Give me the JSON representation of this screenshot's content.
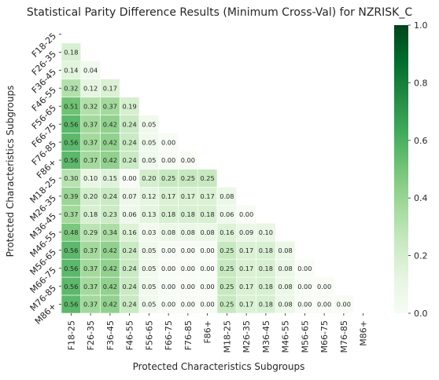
{
  "chart_data": {
    "type": "heatmap",
    "title": "Statistical Parity Difference Results (Minimum Cross-Val) for NZRISK_C",
    "xlabel": "Protected Characteristics Subgroups",
    "ylabel": "Protected Characteristics Subgroups",
    "categories": [
      "F18-25",
      "F26-35",
      "F36-45",
      "F46-55",
      "F56-65",
      "F66-75",
      "F76-85",
      "F86+",
      "M18-25",
      "M26-35",
      "M36-45",
      "M46-55",
      "M56-65",
      "M66-75",
      "M76-85",
      "M86+"
    ],
    "mask": "upper-triangle-including-diagonal",
    "values": [
      [],
      [
        0.18
      ],
      [
        0.14,
        0.04
      ],
      [
        0.32,
        0.12,
        0.17
      ],
      [
        0.51,
        0.32,
        0.37,
        0.19
      ],
      [
        0.56,
        0.37,
        0.42,
        0.24,
        0.05
      ],
      [
        0.56,
        0.37,
        0.42,
        0.24,
        0.05,
        0.0
      ],
      [
        0.56,
        0.37,
        0.42,
        0.24,
        0.05,
        0.0,
        0.0
      ],
      [
        0.3,
        0.1,
        0.15,
        0.0,
        0.2,
        0.25,
        0.25,
        0.25
      ],
      [
        0.39,
        0.2,
        0.24,
        0.07,
        0.12,
        0.17,
        0.17,
        0.17,
        0.08
      ],
      [
        0.37,
        0.18,
        0.23,
        0.06,
        0.13,
        0.18,
        0.18,
        0.18,
        0.06,
        0.0
      ],
      [
        0.48,
        0.29,
        0.34,
        0.16,
        0.03,
        0.08,
        0.08,
        0.08,
        0.16,
        0.09,
        0.1
      ],
      [
        0.56,
        0.37,
        0.42,
        0.24,
        0.05,
        0.0,
        0.0,
        0.0,
        0.25,
        0.17,
        0.18,
        0.08
      ],
      [
        0.56,
        0.37,
        0.42,
        0.24,
        0.05,
        0.0,
        0.0,
        0.0,
        0.25,
        0.17,
        0.18,
        0.08,
        0.0
      ],
      [
        0.56,
        0.37,
        0.42,
        0.24,
        0.05,
        0.0,
        0.0,
        0.0,
        0.25,
        0.17,
        0.18,
        0.08,
        0.0,
        0.0
      ],
      [
        0.56,
        0.37,
        0.42,
        0.24,
        0.05,
        0.0,
        0.0,
        0.0,
        0.25,
        0.17,
        0.18,
        0.08,
        0.0,
        0.0,
        0.0
      ]
    ],
    "value_format": "0.00",
    "colormap": "Greens",
    "vmin": 0.0,
    "vmax": 1.0,
    "colorbar_ticks": [
      "0.0",
      "0.2",
      "0.4",
      "0.6",
      "0.8",
      "1.0"
    ],
    "grid": false,
    "colors": {
      "low": "#f7fcf5",
      "high": "#00441b"
    }
  }
}
